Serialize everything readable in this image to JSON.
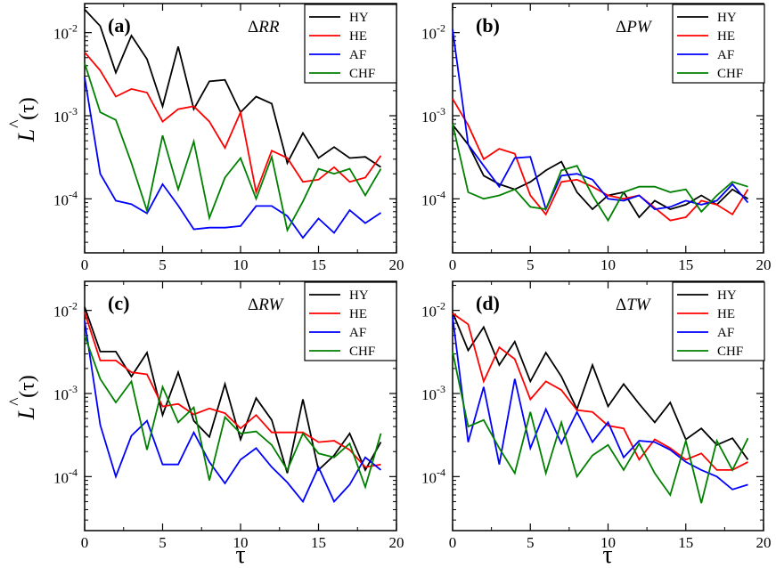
{
  "ylabel": "̂L(τ)",
  "ylabel_hat": "^",
  "ylabel_main": "L",
  "ylabel_paren": "(τ)",
  "xlabel": "τ",
  "colors": {
    "HY": "#000000",
    "HE": "#ff0000",
    "AF": "#0000ff",
    "CHF": "#008000"
  },
  "chart_data": [
    {
      "type": "line",
      "panel_label": "(a)",
      "title_delta": "Δ",
      "title_var": "RR",
      "xlim": [
        0,
        20
      ],
      "ylim_log10": [
        -4.65,
        -1.65
      ],
      "yscale": "log",
      "xticks": [
        0,
        5,
        10,
        15,
        20
      ],
      "yticks": [
        {
          "exp": "-2"
        },
        {
          "exp": "-3"
        },
        {
          "exp": "-4"
        }
      ],
      "x": [
        0,
        1,
        2,
        3,
        4,
        5,
        6,
        7,
        8,
        9,
        10,
        11,
        12,
        13,
        14,
        15,
        16,
        17,
        18,
        19
      ],
      "series": [
        {
          "name": "HY",
          "values": [
            0.019,
            0.012,
            0.0033,
            0.0092,
            0.0048,
            0.0013,
            0.0068,
            0.0012,
            0.0026,
            0.0027,
            0.0011,
            0.0017,
            0.0014,
            0.00027,
            0.00062,
            0.00031,
            0.00042,
            0.00031,
            0.00032,
            0.00024
          ]
        },
        {
          "name": "HE",
          "values": [
            0.0058,
            0.0035,
            0.0017,
            0.0021,
            0.0019,
            0.00085,
            0.0012,
            0.0013,
            0.00085,
            0.00041,
            0.0011,
            0.00012,
            0.00038,
            0.00031,
            0.00016,
            0.00017,
            0.00024,
            0.00016,
            0.00018,
            0.00033
          ]
        },
        {
          "name": "AF",
          "values": [
            0.0029,
            0.0002,
            9.5e-05,
            8.6e-05,
            6.7e-05,
            0.00015,
            8.3e-05,
            4.3e-05,
            4.5e-05,
            4.5e-05,
            4.7e-05,
            8.2e-05,
            8.2e-05,
            6.2e-05,
            3.4e-05,
            5.8e-05,
            3.9e-05,
            7.3e-05,
            5.1e-05,
            6.8e-05
          ]
        },
        {
          "name": "CHF",
          "values": [
            0.0043,
            0.0011,
            0.00089,
            0.00027,
            7.2e-05,
            0.00058,
            0.00013,
            0.00049,
            5.9e-05,
            0.00018,
            0.00031,
            0.0001,
            0.00032,
            4.2e-05,
            9.3e-05,
            0.00023,
            0.0002,
            0.00023,
            0.00011,
            0.00023
          ]
        }
      ]
    },
    {
      "type": "line",
      "panel_label": "(b)",
      "title_delta": "Δ",
      "title_var": "PW",
      "xlim": [
        0,
        20
      ],
      "ylim_log10": [
        -4.65,
        -1.65
      ],
      "yscale": "log",
      "xticks": [
        0,
        5,
        10,
        15,
        20
      ],
      "yticks": [
        {
          "exp": "-2"
        },
        {
          "exp": "-3"
        },
        {
          "exp": "-4"
        }
      ],
      "x": [
        0,
        1,
        2,
        3,
        4,
        5,
        6,
        7,
        8,
        9,
        10,
        11,
        12,
        13,
        14,
        15,
        16,
        17,
        18,
        19
      ],
      "series": [
        {
          "name": "HY",
          "values": [
            0.00078,
            0.00045,
            0.00019,
            0.00015,
            0.00013,
            0.00016,
            0.00022,
            0.00028,
            0.00012,
            7.5e-05,
            0.00011,
            0.00012,
            6e-05,
            9.5e-05,
            7.5e-05,
            8.5e-05,
            0.00011,
            8.5e-05,
            0.00013,
            0.0001
          ]
        },
        {
          "name": "HE",
          "values": [
            0.0016,
            0.00077,
            0.0003,
            0.0004,
            0.00035,
            0.00011,
            6.5e-05,
            0.00016,
            0.00017,
            0.00014,
            0.00011,
            0.0001,
            0.00011,
            7.8e-05,
            5.5e-05,
            6e-05,
            9.5e-05,
            8.5e-05,
            6.5e-05,
            0.00013
          ]
        },
        {
          "name": "AF",
          "values": [
            0.011,
            0.00045,
            0.00025,
            0.00014,
            0.00031,
            0.00032,
            7.5e-05,
            0.00019,
            0.0002,
            0.00017,
            0.0001,
            9.5e-05,
            0.00011,
            7.5e-05,
            8e-05,
            9.5e-05,
            8.5e-05,
            9.5e-05,
            0.00015,
            9e-05
          ]
        },
        {
          "name": "CHF",
          "values": [
            0.0008,
            0.00012,
            0.0001,
            0.00011,
            0.00013,
            8e-05,
            7.5e-05,
            0.00022,
            0.00025,
            0.00011,
            5.5e-05,
            0.00012,
            0.00014,
            0.00014,
            0.00012,
            0.00013,
            7e-05,
            0.00011,
            0.00016,
            0.00014
          ]
        }
      ]
    },
    {
      "type": "line",
      "panel_label": "(c)",
      "title_delta": "Δ",
      "title_var": "RW",
      "xlim": [
        0,
        20
      ],
      "ylim_log10": [
        -4.65,
        -1.65
      ],
      "yscale": "log",
      "xticks": [
        0,
        5,
        10,
        15,
        20
      ],
      "yticks": [
        {
          "exp": "-2"
        },
        {
          "exp": "-3"
        },
        {
          "exp": "-4"
        }
      ],
      "x": [
        0,
        1,
        2,
        3,
        4,
        5,
        6,
        7,
        8,
        9,
        10,
        11,
        12,
        13,
        14,
        15,
        16,
        17,
        18,
        19
      ],
      "series": [
        {
          "name": "HY",
          "values": [
            0.011,
            0.0032,
            0.0032,
            0.0016,
            0.0031,
            0.00055,
            0.0018,
            0.00047,
            0.0003,
            0.0013,
            0.00028,
            0.00088,
            0.00048,
            0.00011,
            0.00085,
            0.00012,
            0.00018,
            0.00033,
            0.00012,
            0.00026
          ]
        },
        {
          "name": "HE",
          "values": [
            0.0095,
            0.0025,
            0.0025,
            0.0018,
            0.0017,
            0.0007,
            0.00075,
            0.00056,
            0.00066,
            0.00058,
            0.00038,
            0.00055,
            0.00034,
            0.00034,
            0.00034,
            0.00026,
            0.00027,
            0.00021,
            0.00013,
            0.00014
          ]
        },
        {
          "name": "AF",
          "values": [
            0.0075,
            0.00042,
            0.0001,
            0.00031,
            0.00047,
            0.00014,
            0.00014,
            0.00034,
            0.00015,
            8.3e-05,
            0.00016,
            0.00022,
            0.00013,
            8.5e-05,
            5e-05,
            0.00013,
            5e-05,
            8e-05,
            0.00017,
            0.00012
          ]
        },
        {
          "name": "CHF",
          "values": [
            0.005,
            0.0015,
            0.00078,
            0.0014,
            0.00021,
            0.0012,
            0.00045,
            0.00068,
            9e-05,
            0.00052,
            0.00033,
            0.00035,
            0.00024,
            0.00012,
            0.00033,
            0.00019,
            0.00017,
            0.00025,
            7.5e-05,
            0.00033
          ]
        }
      ]
    },
    {
      "type": "line",
      "panel_label": "(d)",
      "title_delta": "Δ",
      "title_var": "TW",
      "xlim": [
        0,
        20
      ],
      "ylim_log10": [
        -4.65,
        -1.65
      ],
      "yscale": "log",
      "xticks": [
        0,
        5,
        10,
        15,
        20
      ],
      "yticks": [
        {
          "exp": "-2"
        },
        {
          "exp": "-3"
        },
        {
          "exp": "-4"
        }
      ],
      "x": [
        0,
        1,
        2,
        3,
        4,
        5,
        6,
        7,
        8,
        9,
        10,
        11,
        12,
        13,
        14,
        15,
        16,
        17,
        18,
        19
      ],
      "series": [
        {
          "name": "HY",
          "values": [
            0.0095,
            0.0033,
            0.0063,
            0.0022,
            0.0042,
            0.0014,
            0.0031,
            0.0016,
            0.00065,
            0.0022,
            0.0007,
            0.0013,
            0.00075,
            0.00045,
            0.00078,
            0.00028,
            0.00038,
            0.00024,
            0.00029,
            0.00016
          ]
        },
        {
          "name": "HE",
          "values": [
            0.0092,
            0.0068,
            0.0014,
            0.0036,
            0.0026,
            0.00085,
            0.0014,
            0.0011,
            0.00063,
            0.0006,
            0.00041,
            0.00038,
            0.00016,
            0.00028,
            0.00022,
            0.00016,
            0.00019,
            0.00012,
            0.00012,
            0.00015
          ]
        },
        {
          "name": "AF",
          "values": [
            0.0085,
            0.00026,
            0.0012,
            0.00014,
            0.0015,
            0.00022,
            0.00065,
            0.00025,
            0.0006,
            0.00026,
            0.00045,
            0.00017,
            0.00027,
            0.00026,
            0.00021,
            0.00015,
            0.00012,
            0.0001,
            7e-05,
            8e-05
          ]
        },
        {
          "name": "CHF",
          "values": [
            0.0032,
            0.0004,
            0.00048,
            0.00022,
            0.00011,
            0.0006,
            0.00011,
            0.00045,
            0.0001,
            0.00018,
            0.00024,
            0.00012,
            0.00025,
            0.00011,
            6e-05,
            0.00027,
            4.8e-05,
            0.00027,
            0.00012,
            0.00029
          ]
        }
      ]
    }
  ]
}
